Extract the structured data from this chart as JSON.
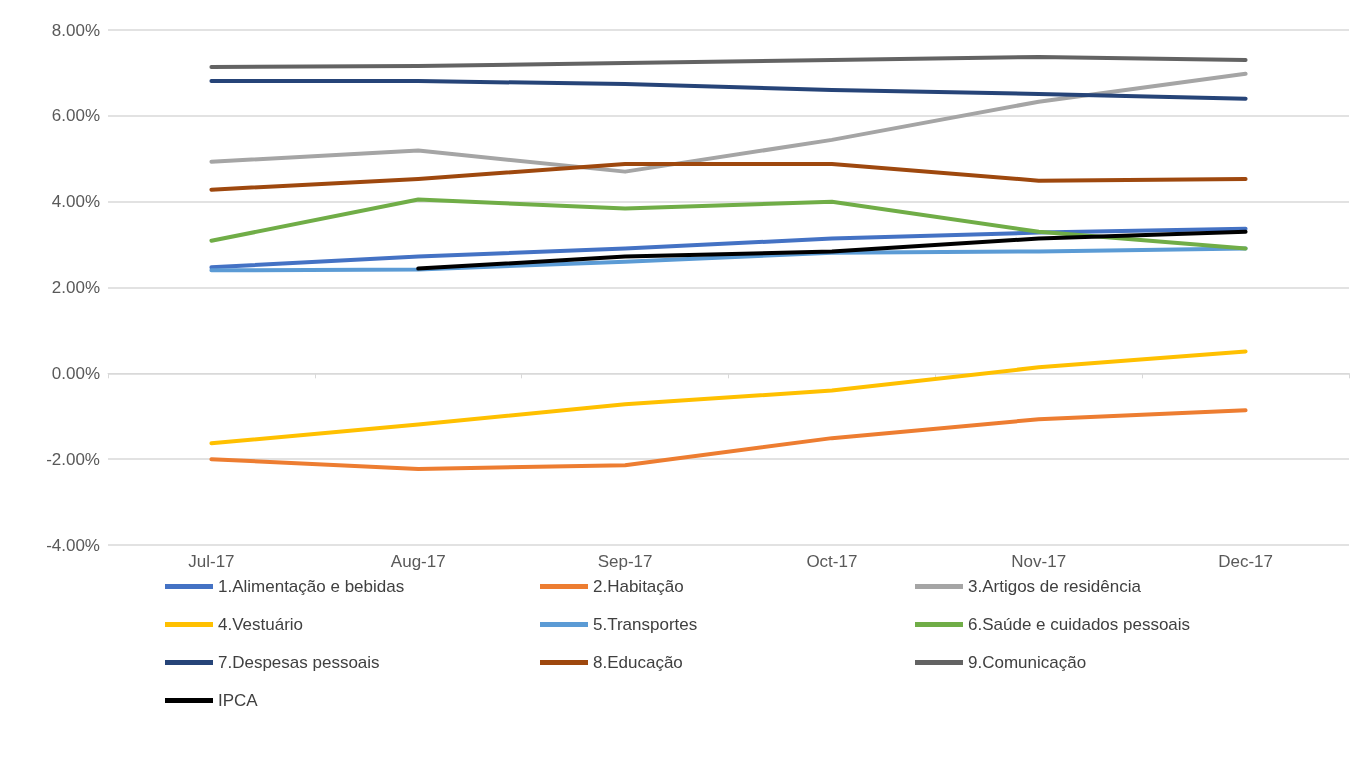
{
  "chart_data": {
    "type": "line",
    "categories": [
      "Jul-17",
      "Aug-17",
      "Sep-17",
      "Oct-17",
      "Nov-17",
      "Dec-17"
    ],
    "series": [
      {
        "name": "1.Alimentação e bebidas",
        "color": "#4472c4",
        "values": [
          2.47,
          2.72,
          2.91,
          3.14,
          3.28,
          3.37
        ]
      },
      {
        "name": "2.Habitação",
        "color": "#ed7d31",
        "values": [
          -2.0,
          -2.23,
          -2.14,
          -1.51,
          -1.07,
          -0.86
        ]
      },
      {
        "name": "3.Artigos de residência",
        "color": "#a5a5a5",
        "values": [
          4.93,
          5.19,
          4.7,
          5.44,
          6.33,
          6.98
        ]
      },
      {
        "name": "4.Vestuário",
        "color": "#ffc000",
        "values": [
          -1.63,
          -1.19,
          -0.72,
          -0.4,
          0.14,
          0.51
        ]
      },
      {
        "name": "5.Transportes",
        "color": "#5b9bd5",
        "values": [
          2.4,
          2.42,
          2.6,
          2.81,
          2.84,
          2.91
        ]
      },
      {
        "name": "6.Saúde e cuidados pessoais",
        "color": "#70ad47",
        "values": [
          3.09,
          4.05,
          3.84,
          4.0,
          3.3,
          2.91
        ]
      },
      {
        "name": "7.Despesas pessoais",
        "color": "#264478",
        "values": [
          6.81,
          6.81,
          6.74,
          6.6,
          6.51,
          6.4
        ]
      },
      {
        "name": "8.Educação",
        "color": "#9e480e",
        "values": [
          4.28,
          4.53,
          4.88,
          4.88,
          4.49,
          4.53
        ]
      },
      {
        "name": "9.Comunicação",
        "color": "#636363",
        "values": [
          7.14,
          7.16,
          7.23,
          7.3,
          7.37,
          7.3
        ]
      },
      {
        "name": "IPCA",
        "color": "#000000",
        "values": [
          null,
          2.44,
          2.72,
          2.84,
          3.14,
          3.3
        ]
      }
    ],
    "ylim": [
      -4,
      8
    ],
    "yticks": [
      {
        "value": -4,
        "label": "-4.00%"
      },
      {
        "value": -2,
        "label": "-2.00%"
      },
      {
        "value": 0,
        "label": "0.00%"
      },
      {
        "value": 2,
        "label": "2.00%"
      },
      {
        "value": 4,
        "label": "4.00%"
      },
      {
        "value": 6,
        "label": "6.00%"
      },
      {
        "value": 8,
        "label": "8.00%"
      }
    ],
    "grid": "y",
    "legend": "bottom",
    "marker": "none",
    "line_style": "solid"
  }
}
